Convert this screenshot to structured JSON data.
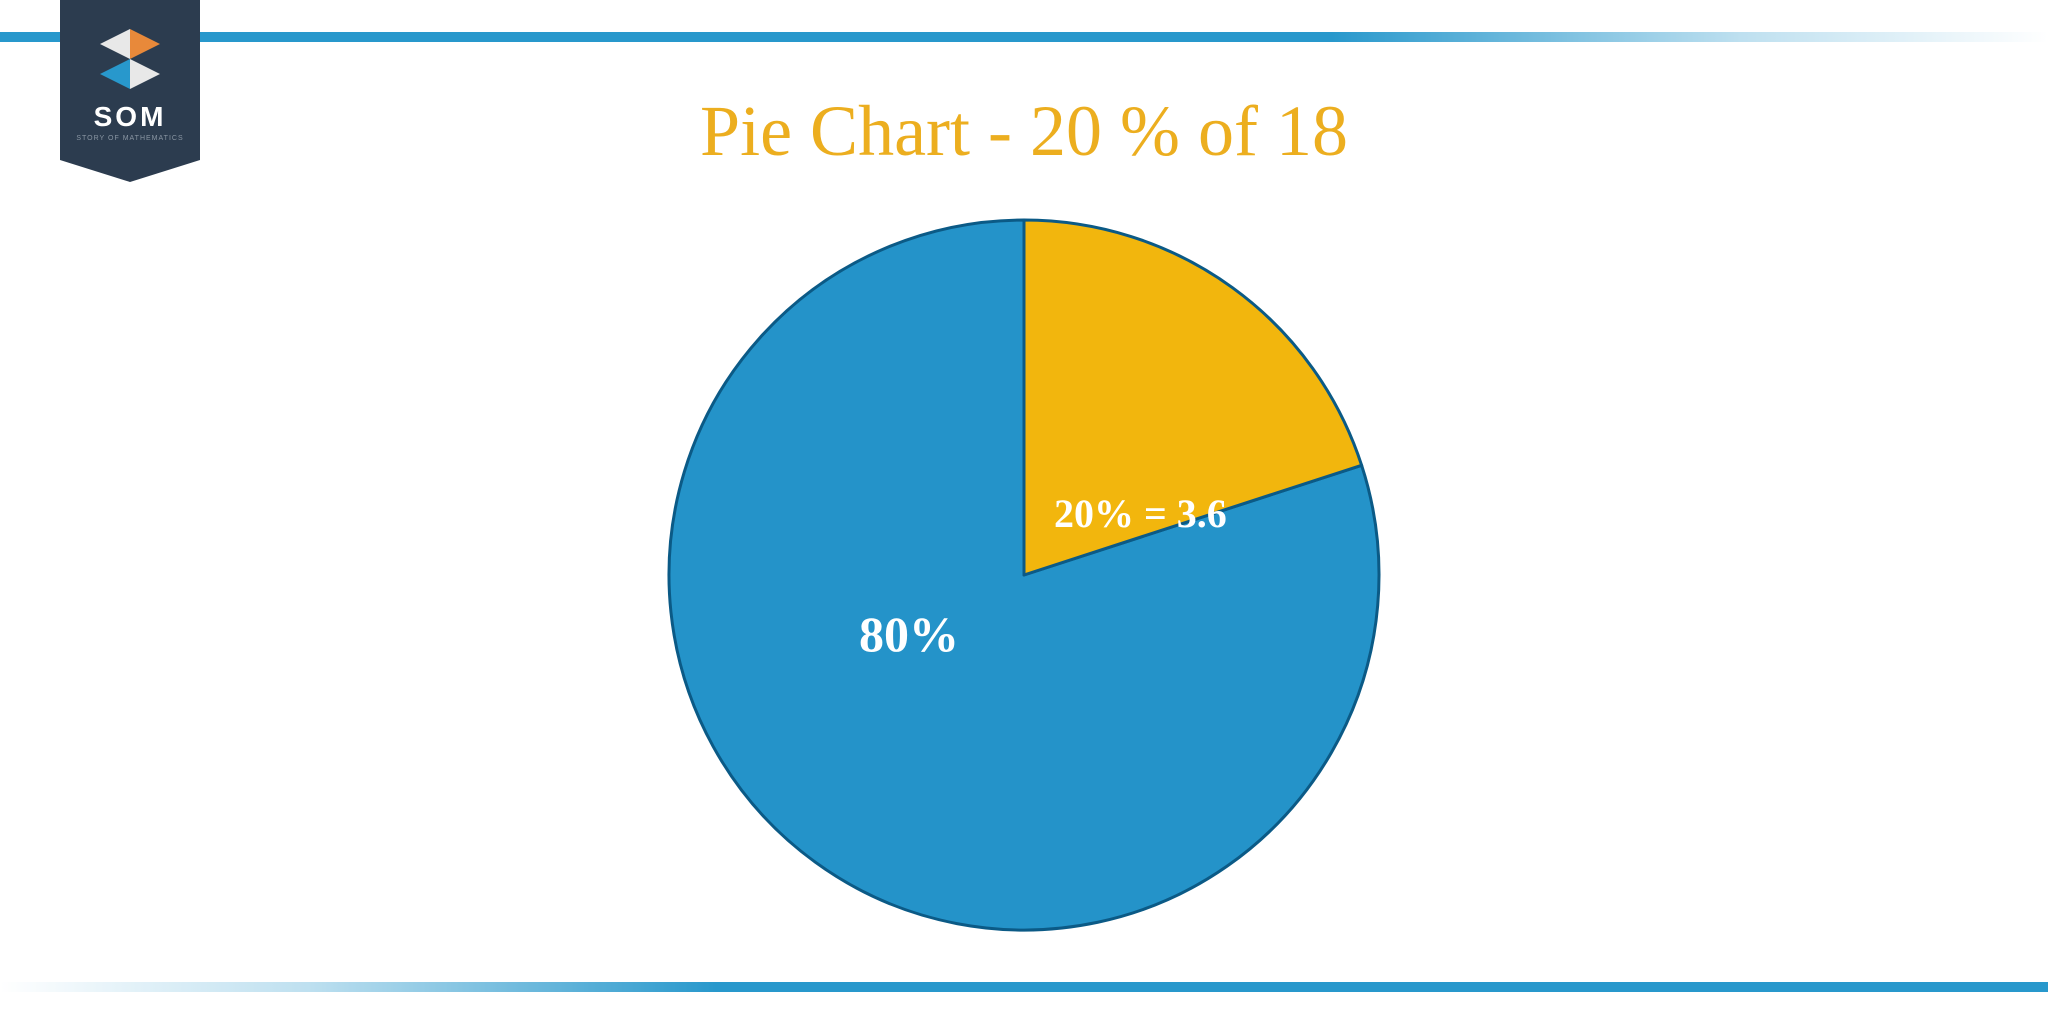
{
  "logo": {
    "text": "SOM",
    "subtext": "STORY OF MATHEMATICS",
    "colors": {
      "badge_bg": "#2c3c4f",
      "text": "#ffffff",
      "subtext": "#8a96a3",
      "orange": "#e8893a",
      "blue": "#2898cc",
      "light": "#e8e8e8"
    }
  },
  "chart": {
    "type": "pie",
    "title": "Pie Chart - 20 % of 18",
    "title_color": "#ecae1f",
    "title_fontsize": 72,
    "slices": [
      {
        "label": "80%",
        "value": 80,
        "color": "#2493c9",
        "start_angle": 72,
        "end_angle": 360
      },
      {
        "label": "20% = 3.6",
        "value": 20,
        "color": "#f2b60d",
        "start_angle": 0,
        "end_angle": 72
      }
    ],
    "stroke_color": "#0b5a86",
    "stroke_width": 3,
    "diameter": 720,
    "label_color": "#ffffff",
    "label_80_fontsize": 50,
    "label_20_fontsize": 40
  },
  "borders": {
    "color": "#2898cc",
    "height": 10
  },
  "background_color": "#ffffff"
}
